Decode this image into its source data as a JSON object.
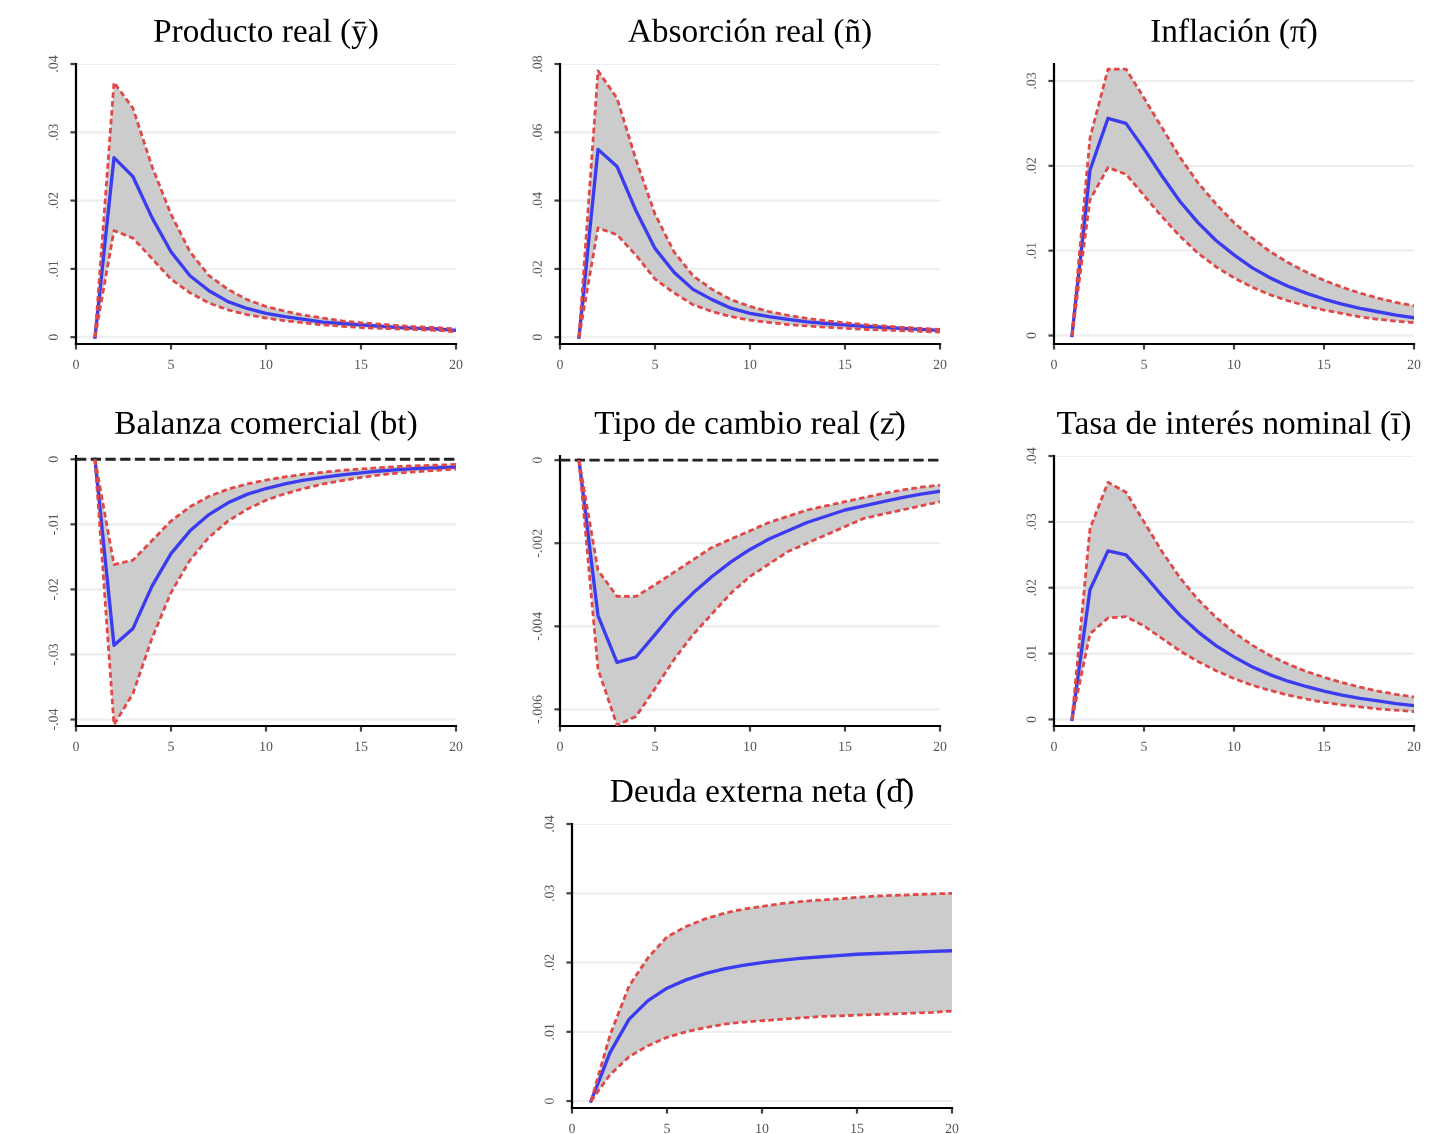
{
  "chart_data": [
    {
      "type": "line",
      "title": "Producto real (ȳ)",
      "x": [
        1,
        2,
        3,
        4,
        5,
        6,
        7,
        8,
        9,
        10,
        11,
        12,
        13,
        14,
        15,
        16,
        17,
        18,
        19,
        20
      ],
      "xlim": [
        0,
        20
      ],
      "xticks": [
        0,
        5,
        10,
        15,
        20
      ],
      "ylim": [
        -0.001,
        0.04
      ],
      "yticks": [
        0,
        {
          "value": 0.01,
          "label": ".01"
        },
        {
          "value": 0.02,
          "label": ".02"
        },
        {
          "value": 0.03,
          "label": ".03"
        },
        {
          "value": 0.04,
          "label": ".04"
        }
      ],
      "grid": "y",
      "series": [
        {
          "color": "#3b3bf0",
          "values": [
            0,
            0.0263,
            0.0235,
            0.0175,
            0.0125,
            0.009,
            0.0068,
            0.0052,
            0.0042,
            0.0035,
            0.003,
            0.0026,
            0.0022,
            0.002,
            0.0018,
            0.0016,
            0.0014,
            0.0013,
            0.0012,
            0.001
          ],
          "upper": [
            0,
            0.0373,
            0.0335,
            0.025,
            0.018,
            0.0125,
            0.009,
            0.007,
            0.0055,
            0.0045,
            0.0038,
            0.0032,
            0.0028,
            0.0024,
            0.0021,
            0.0019,
            0.0017,
            0.0015,
            0.0014,
            0.0012
          ],
          "lower": [
            0,
            0.0156,
            0.0145,
            0.0115,
            0.0085,
            0.0065,
            0.005,
            0.004,
            0.0033,
            0.0028,
            0.0024,
            0.0021,
            0.0018,
            0.0016,
            0.0014,
            0.0013,
            0.0012,
            0.0011,
            0.001,
            0.0008
          ]
        },
        {
          "color": "#e04848",
          "line_style": "dashed",
          "values": [
            0,
            0.0373,
            0.0335,
            0.025,
            0.018,
            0.0125,
            0.009,
            0.007,
            0.0055,
            0.0045,
            0.0038,
            0.0032,
            0.0028,
            0.0024,
            0.0021,
            0.0019,
            0.0017,
            0.0015,
            0.0014,
            0.0012
          ]
        },
        {
          "color": "#e04848",
          "line_style": "dashed",
          "values": [
            0,
            0.0156,
            0.0145,
            0.0115,
            0.0085,
            0.0065,
            0.005,
            0.004,
            0.0033,
            0.0028,
            0.0024,
            0.0021,
            0.0018,
            0.0016,
            0.0014,
            0.0013,
            0.0012,
            0.0011,
            0.001,
            0.0008
          ]
        }
      ]
    },
    {
      "type": "line",
      "title": "Absorción real (ñ)",
      "x": [
        1,
        2,
        3,
        4,
        5,
        6,
        7,
        8,
        9,
        10,
        11,
        12,
        13,
        14,
        15,
        16,
        17,
        18,
        19,
        20
      ],
      "xlim": [
        0,
        20
      ],
      "xticks": [
        0,
        5,
        10,
        15,
        20
      ],
      "ylim": [
        -0.002,
        0.08
      ],
      "yticks": [
        0,
        {
          "value": 0.02,
          "label": ".02"
        },
        {
          "value": 0.04,
          "label": ".04"
        },
        {
          "value": 0.06,
          "label": ".06"
        },
        {
          "value": 0.08,
          "label": ".08"
        }
      ],
      "grid": "y",
      "series": [
        {
          "color": "#3b3bf0",
          "values": [
            0,
            0.055,
            0.05,
            0.037,
            0.026,
            0.019,
            0.014,
            0.011,
            0.0085,
            0.007,
            0.006,
            0.0052,
            0.0045,
            0.004,
            0.0036,
            0.0032,
            0.0029,
            0.0026,
            0.0023,
            0.002
          ],
          "upper": [
            0,
            0.078,
            0.07,
            0.052,
            0.036,
            0.025,
            0.018,
            0.014,
            0.011,
            0.009,
            0.0075,
            0.0064,
            0.0055,
            0.0048,
            0.0042,
            0.0037,
            0.0033,
            0.0029,
            0.0026,
            0.0023
          ],
          "lower": [
            0,
            0.032,
            0.03,
            0.024,
            0.017,
            0.013,
            0.0095,
            0.0075,
            0.006,
            0.005,
            0.0043,
            0.0037,
            0.0033,
            0.0029,
            0.0026,
            0.0023,
            0.0021,
            0.0019,
            0.0017,
            0.0015
          ]
        },
        {
          "color": "#e04848",
          "line_style": "dashed",
          "values": [
            0,
            0.078,
            0.07,
            0.052,
            0.036,
            0.025,
            0.018,
            0.014,
            0.011,
            0.009,
            0.0075,
            0.0064,
            0.0055,
            0.0048,
            0.0042,
            0.0037,
            0.0033,
            0.0029,
            0.0026,
            0.0023
          ]
        },
        {
          "color": "#e04848",
          "line_style": "dashed",
          "values": [
            0,
            0.032,
            0.03,
            0.024,
            0.017,
            0.013,
            0.0095,
            0.0075,
            0.006,
            0.005,
            0.0043,
            0.0037,
            0.0033,
            0.0029,
            0.0026,
            0.0023,
            0.0021,
            0.0019,
            0.0017,
            0.0015
          ]
        }
      ]
    },
    {
      "type": "line",
      "title": "Inflación (π̂)",
      "x": [
        1,
        2,
        3,
        4,
        5,
        6,
        7,
        8,
        9,
        10,
        11,
        12,
        13,
        14,
        15,
        16,
        17,
        18,
        19,
        20
      ],
      "xlim": [
        0,
        20
      ],
      "xticks": [
        0,
        5,
        10,
        15,
        20
      ],
      "ylim": [
        -0.001,
        0.032
      ],
      "yticks": [
        0,
        {
          "value": 0.01,
          "label": ".01"
        },
        {
          "value": 0.02,
          "label": ".02"
        },
        {
          "value": 0.03,
          "label": ".03"
        }
      ],
      "grid": "y",
      "series": [
        {
          "color": "#3b3bf0",
          "values": [
            0,
            0.0195,
            0.0256,
            0.025,
            0.022,
            0.0188,
            0.0158,
            0.0133,
            0.0112,
            0.0095,
            0.008,
            0.0068,
            0.0058,
            0.005,
            0.0043,
            0.0037,
            0.0032,
            0.0028,
            0.0024,
            0.0021
          ],
          "upper": [
            0,
            0.0233,
            0.0314,
            0.0314,
            0.028,
            0.0245,
            0.021,
            0.018,
            0.0155,
            0.0133,
            0.0115,
            0.0099,
            0.0086,
            0.0075,
            0.0065,
            0.0057,
            0.005,
            0.0044,
            0.0039,
            0.0035
          ],
          "lower": [
            0,
            0.016,
            0.0198,
            0.019,
            0.0165,
            0.014,
            0.0117,
            0.0097,
            0.0081,
            0.0068,
            0.0057,
            0.0048,
            0.0041,
            0.0035,
            0.003,
            0.0026,
            0.0022,
            0.0019,
            0.0017,
            0.0015
          ]
        },
        {
          "color": "#e04848",
          "line_style": "dashed",
          "values": [
            0,
            0.0233,
            0.0314,
            0.0314,
            0.028,
            0.0245,
            0.021,
            0.018,
            0.0155,
            0.0133,
            0.0115,
            0.0099,
            0.0086,
            0.0075,
            0.0065,
            0.0057,
            0.005,
            0.0044,
            0.0039,
            0.0035
          ]
        },
        {
          "color": "#e04848",
          "line_style": "dashed",
          "values": [
            0,
            0.016,
            0.0198,
            0.019,
            0.0165,
            0.014,
            0.0117,
            0.0097,
            0.0081,
            0.0068,
            0.0057,
            0.0048,
            0.0041,
            0.0035,
            0.003,
            0.0026,
            0.0022,
            0.0019,
            0.0017,
            0.0015
          ]
        }
      ]
    },
    {
      "type": "line",
      "title": "Balanza comercial (bt)",
      "x": [
        1,
        2,
        3,
        4,
        5,
        6,
        7,
        8,
        9,
        10,
        11,
        12,
        13,
        14,
        15,
        16,
        17,
        18,
        19,
        20
      ],
      "xlim": [
        0,
        20
      ],
      "xticks": [
        0,
        5,
        10,
        15,
        20
      ],
      "ylim": [
        -0.041,
        0.0005
      ],
      "yticks": [
        0,
        {
          "value": -0.01,
          "label": "-.01"
        },
        {
          "value": -0.02,
          "label": "-.02"
        },
        {
          "value": -0.03,
          "label": "-.03"
        },
        {
          "value": -0.04,
          "label": "-.04"
        }
      ],
      "grid": "y",
      "ref_lines": [
        {
          "axis": "y",
          "value": 0,
          "color": "#222222",
          "line_style": "dashed"
        }
      ],
      "series": [
        {
          "color": "#3b3bf0",
          "values": [
            0,
            -0.0286,
            -0.026,
            -0.0195,
            -0.0145,
            -0.011,
            -0.0085,
            -0.0067,
            -0.0054,
            -0.0045,
            -0.0038,
            -0.0032,
            -0.0028,
            -0.0024,
            -0.0021,
            -0.0018,
            -0.0016,
            -0.0014,
            -0.0013,
            -0.0012
          ],
          "upper": [
            0,
            -0.0162,
            -0.0155,
            -0.0125,
            -0.0095,
            -0.0073,
            -0.0057,
            -0.0046,
            -0.0038,
            -0.0032,
            -0.0027,
            -0.0023,
            -0.002,
            -0.0017,
            -0.0015,
            -0.0013,
            -0.0011,
            -0.001,
            -0.0009,
            -0.0008
          ],
          "lower": [
            0,
            -0.0408,
            -0.036,
            -0.0275,
            -0.0205,
            -0.0155,
            -0.012,
            -0.0095,
            -0.0077,
            -0.0063,
            -0.0053,
            -0.0045,
            -0.0038,
            -0.0033,
            -0.0028,
            -0.0024,
            -0.0021,
            -0.0019,
            -0.0017,
            -0.0015
          ]
        },
        {
          "color": "#e04848",
          "line_style": "dashed",
          "values": [
            0,
            -0.0162,
            -0.0155,
            -0.0125,
            -0.0095,
            -0.0073,
            -0.0057,
            -0.0046,
            -0.0038,
            -0.0032,
            -0.0027,
            -0.0023,
            -0.002,
            -0.0017,
            -0.0015,
            -0.0013,
            -0.0011,
            -0.001,
            -0.0009,
            -0.0008
          ]
        },
        {
          "color": "#e04848",
          "line_style": "dashed",
          "values": [
            0,
            -0.0408,
            -0.036,
            -0.0275,
            -0.0205,
            -0.0155,
            -0.012,
            -0.0095,
            -0.0077,
            -0.0063,
            -0.0053,
            -0.0045,
            -0.0038,
            -0.0033,
            -0.0028,
            -0.0024,
            -0.0021,
            -0.0019,
            -0.0017,
            -0.0015
          ]
        }
      ]
    },
    {
      "type": "line",
      "title": "Tipo de cambio real (z̄)",
      "x": [
        1,
        2,
        3,
        4,
        5,
        6,
        7,
        8,
        9,
        10,
        11,
        12,
        13,
        14,
        15,
        16,
        17,
        18,
        19,
        20
      ],
      "xlim": [
        0,
        20
      ],
      "xticks": [
        0,
        5,
        10,
        15,
        20
      ],
      "ylim": [
        -0.0064,
        0.0001
      ],
      "yticks": [
        0,
        {
          "value": -0.002,
          "label": "-.002"
        },
        {
          "value": -0.004,
          "label": "-.004"
        },
        {
          "value": -0.006,
          "label": "-.006"
        }
      ],
      "grid": "y",
      "ref_lines": [
        {
          "axis": "y",
          "value": 0,
          "color": "#222222",
          "line_style": "dashed"
        }
      ],
      "series": [
        {
          "color": "#3b3bf0",
          "values": [
            0,
            -0.00374,
            -0.00487,
            -0.00474,
            -0.0042,
            -0.00365,
            -0.0032,
            -0.0028,
            -0.00245,
            -0.00215,
            -0.0019,
            -0.0017,
            -0.0015,
            -0.00135,
            -0.0012,
            -0.0011,
            -0.001,
            -0.0009,
            -0.00082,
            -0.00075
          ],
          "upper": [
            0,
            -0.00265,
            -0.00328,
            -0.00328,
            -0.003,
            -0.0027,
            -0.0024,
            -0.0021,
            -0.0019,
            -0.0017,
            -0.0015,
            -0.00135,
            -0.0012,
            -0.0011,
            -0.001,
            -0.0009,
            -0.0008,
            -0.00072,
            -0.00065,
            -0.0006
          ],
          "lower": [
            0,
            -0.00503,
            -0.00638,
            -0.00617,
            -0.0055,
            -0.0048,
            -0.0042,
            -0.0037,
            -0.0032,
            -0.0028,
            -0.0025,
            -0.0022,
            -0.002,
            -0.0018,
            -0.0016,
            -0.0014,
            -0.0013,
            -0.0012,
            -0.0011,
            -0.001
          ]
        },
        {
          "color": "#e04848",
          "line_style": "dashed",
          "values": [
            0,
            -0.00265,
            -0.00328,
            -0.00328,
            -0.003,
            -0.0027,
            -0.0024,
            -0.0021,
            -0.0019,
            -0.0017,
            -0.0015,
            -0.00135,
            -0.0012,
            -0.0011,
            -0.001,
            -0.0009,
            -0.0008,
            -0.00072,
            -0.00065,
            -0.0006
          ]
        },
        {
          "color": "#e04848",
          "line_style": "dashed",
          "values": [
            0,
            -0.00503,
            -0.00638,
            -0.00617,
            -0.0055,
            -0.0048,
            -0.0042,
            -0.0037,
            -0.0032,
            -0.0028,
            -0.0025,
            -0.0022,
            -0.002,
            -0.0018,
            -0.0016,
            -0.0014,
            -0.0013,
            -0.0012,
            -0.0011,
            -0.001
          ]
        }
      ]
    },
    {
      "type": "line",
      "title": "Tasa de interés nominal (ī)",
      "x": [
        1,
        2,
        3,
        4,
        5,
        6,
        7,
        8,
        9,
        10,
        11,
        12,
        13,
        14,
        15,
        16,
        17,
        18,
        19,
        20
      ],
      "xlim": [
        0,
        20
      ],
      "xticks": [
        0,
        5,
        10,
        15,
        20
      ],
      "ylim": [
        -0.001,
        0.04
      ],
      "yticks": [
        0,
        {
          "value": 0.01,
          "label": ".01"
        },
        {
          "value": 0.02,
          "label": ".02"
        },
        {
          "value": 0.03,
          "label": ".03"
        },
        {
          "value": 0.04,
          "label": ".04"
        }
      ],
      "grid": "y",
      "series": [
        {
          "color": "#3b3bf0",
          "values": [
            0,
            0.0197,
            0.0256,
            0.025,
            0.022,
            0.0188,
            0.0158,
            0.0133,
            0.0112,
            0.0095,
            0.008,
            0.0068,
            0.0058,
            0.005,
            0.0043,
            0.0037,
            0.0032,
            0.0028,
            0.0024,
            0.0021
          ],
          "upper": [
            0,
            0.029,
            0.036,
            0.0345,
            0.03,
            0.0255,
            0.0215,
            0.0182,
            0.0155,
            0.0132,
            0.0113,
            0.0097,
            0.0084,
            0.0073,
            0.0064,
            0.0056,
            0.0049,
            0.0043,
            0.0038,
            0.0034
          ],
          "lower": [
            0,
            0.013,
            0.0154,
            0.0156,
            0.0142,
            0.0123,
            0.0104,
            0.0088,
            0.0074,
            0.0062,
            0.0052,
            0.0044,
            0.0037,
            0.0031,
            0.0026,
            0.0022,
            0.0019,
            0.0016,
            0.0014,
            0.0012
          ]
        },
        {
          "color": "#e04848",
          "line_style": "dashed",
          "values": [
            0,
            0.029,
            0.036,
            0.0345,
            0.03,
            0.0255,
            0.0215,
            0.0182,
            0.0155,
            0.0132,
            0.0113,
            0.0097,
            0.0084,
            0.0073,
            0.0064,
            0.0056,
            0.0049,
            0.0043,
            0.0038,
            0.0034
          ]
        },
        {
          "color": "#e04848",
          "line_style": "dashed",
          "values": [
            0,
            0.013,
            0.0154,
            0.0156,
            0.0142,
            0.0123,
            0.0104,
            0.0088,
            0.0074,
            0.0062,
            0.0052,
            0.0044,
            0.0037,
            0.0031,
            0.0026,
            0.0022,
            0.0019,
            0.0016,
            0.0014,
            0.0012
          ]
        }
      ]
    },
    {
      "type": "line",
      "title": "Deuda externa neta (d̂)",
      "x": [
        1,
        2,
        3,
        4,
        5,
        6,
        7,
        8,
        9,
        10,
        11,
        12,
        13,
        14,
        15,
        16,
        17,
        18,
        19,
        20
      ],
      "xlim": [
        0,
        20
      ],
      "xticks": [
        0,
        5,
        10,
        15,
        20
      ],
      "ylim": [
        -0.001,
        0.04
      ],
      "yticks": [
        0,
        {
          "value": 0.01,
          "label": ".01"
        },
        {
          "value": 0.02,
          "label": ".02"
        },
        {
          "value": 0.03,
          "label": ".03"
        },
        {
          "value": 0.04,
          "label": ".04"
        }
      ],
      "grid": "y",
      "series": [
        {
          "color": "#3b3bf0",
          "values": [
            0,
            0.007,
            0.0118,
            0.0145,
            0.0163,
            0.0175,
            0.0184,
            0.0191,
            0.0196,
            0.02,
            0.0203,
            0.0206,
            0.0208,
            0.021,
            0.0212,
            0.0213,
            0.0214,
            0.0215,
            0.0216,
            0.0217
          ],
          "upper": [
            0,
            0.0095,
            0.0166,
            0.0207,
            0.0237,
            0.0252,
            0.0263,
            0.0271,
            0.0277,
            0.0281,
            0.0285,
            0.0288,
            0.029,
            0.0292,
            0.0294,
            0.0296,
            0.0297,
            0.0298,
            0.0299,
            0.03
          ],
          "lower": [
            0,
            0.0038,
            0.0064,
            0.008,
            0.0092,
            0.01,
            0.0106,
            0.0111,
            0.0114,
            0.0116,
            0.0118,
            0.012,
            0.0122,
            0.0123,
            0.0124,
            0.0125,
            0.0126,
            0.0127,
            0.0128,
            0.013
          ]
        },
        {
          "color": "#e04848",
          "line_style": "dashed",
          "values": [
            0,
            0.0095,
            0.0166,
            0.0207,
            0.0237,
            0.0252,
            0.0263,
            0.0271,
            0.0277,
            0.0281,
            0.0285,
            0.0288,
            0.029,
            0.0292,
            0.0294,
            0.0296,
            0.0297,
            0.0298,
            0.0299,
            0.03
          ]
        },
        {
          "color": "#e04848",
          "line_style": "dashed",
          "values": [
            0,
            0.0038,
            0.0064,
            0.008,
            0.0092,
            0.01,
            0.0106,
            0.0111,
            0.0114,
            0.0116,
            0.0118,
            0.012,
            0.0122,
            0.0123,
            0.0124,
            0.0125,
            0.0126,
            0.0127,
            0.0128,
            0.013
          ]
        }
      ]
    }
  ]
}
